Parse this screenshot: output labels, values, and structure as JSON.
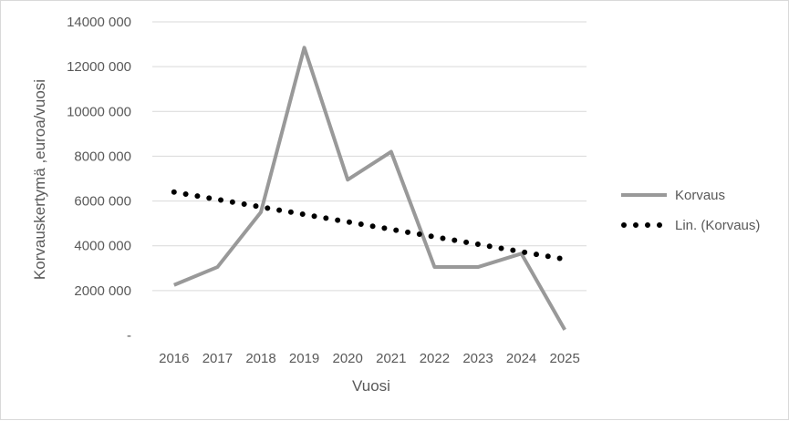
{
  "chart_data": {
    "type": "line",
    "title": "",
    "xlabel": "Vuosi",
    "ylabel": "Korvauskertymä ,euroa/vuosi",
    "categories": [
      "2016",
      "2017",
      "2018",
      "2019",
      "2020",
      "2021",
      "2022",
      "2023",
      "2024",
      "2025"
    ],
    "ylim": [
      0,
      14000000
    ],
    "yticks": [
      0,
      2000000,
      4000000,
      6000000,
      8000000,
      10000000,
      12000000,
      14000000
    ],
    "ytick_labels": [
      "-",
      "2000 000",
      "4000 000",
      "6000 000",
      "8000 000",
      "10000 000",
      "12000 000",
      "14000 000"
    ],
    "grid": true,
    "legend_position": "right",
    "series": [
      {
        "name": "Korvaus",
        "color": "#999999",
        "style": "solid",
        "values": [
          2250000,
          3050000,
          5500000,
          12850000,
          6950000,
          8200000,
          3050000,
          3050000,
          3650000,
          250000
        ]
      },
      {
        "name": "Lin. (Korvaus)",
        "color": "#000000",
        "style": "dotted",
        "values": [
          6400000,
          6067000,
          5733000,
          5400000,
          5067000,
          4733000,
          4400000,
          4067000,
          3733000,
          3400000
        ]
      }
    ]
  }
}
